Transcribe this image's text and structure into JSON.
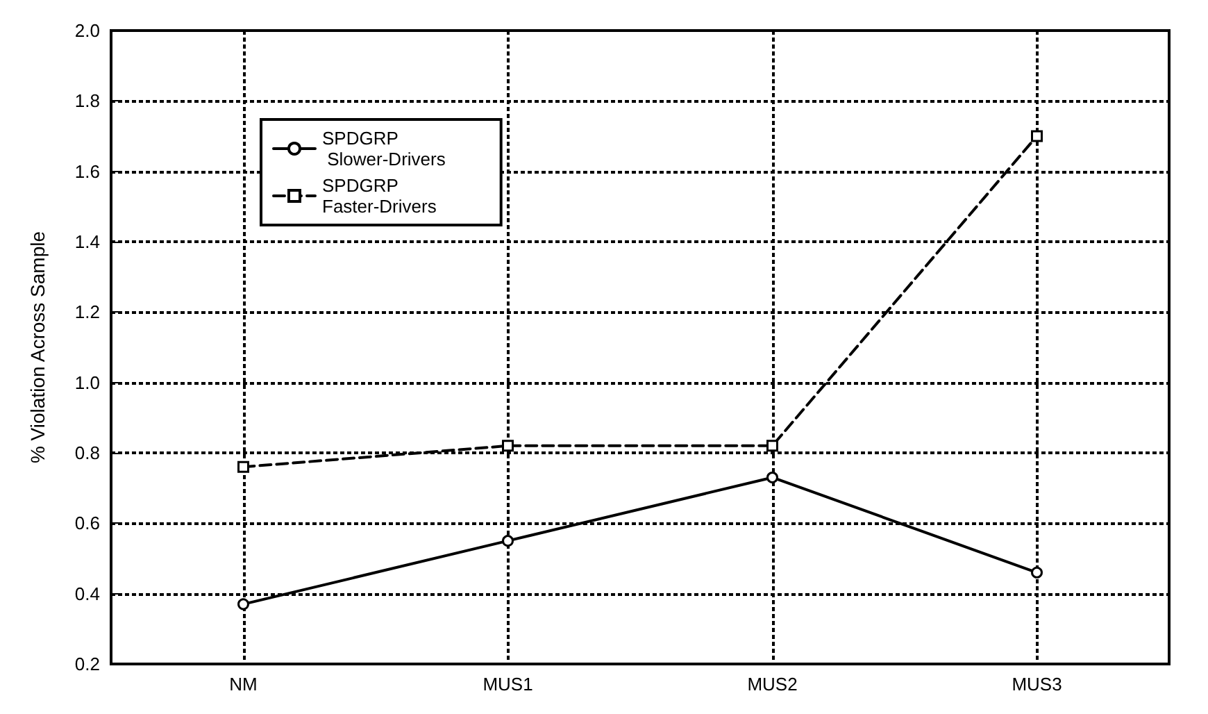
{
  "chart_data": {
    "type": "line",
    "ylabel": "% Violation Across Sample",
    "categories": [
      "NM",
      "MUS1",
      "MUS2",
      "MUS3"
    ],
    "series": [
      {
        "name": "SPDGRP\n Slower-Drivers",
        "color": "#000000",
        "values": [
          0.37,
          0.55,
          0.73,
          0.46
        ],
        "marker": "circle",
        "line_style": "solid"
      },
      {
        "name": "SPDGRP\nFaster-Drivers",
        "color": "#000000",
        "values": [
          0.76,
          0.82,
          0.82,
          1.7
        ],
        "marker": "square",
        "line_style": "dashed"
      }
    ],
    "ylim": [
      0.2,
      2.0
    ],
    "yticks": [
      0.2,
      0.4,
      0.6,
      0.8,
      {
        "value": 1,
        "label": "1.0"
      },
      1.2,
      1.4,
      1.6,
      1.8,
      {
        "value": 2,
        "label": "2.0"
      }
    ],
    "grid": true,
    "legend": "top left"
  }
}
